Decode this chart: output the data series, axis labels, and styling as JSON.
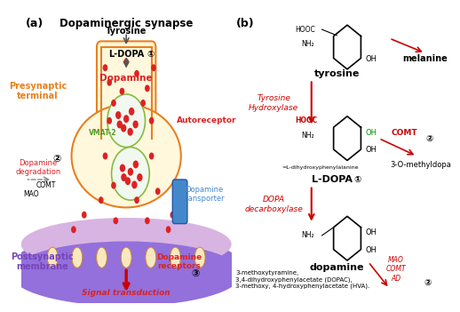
{
  "title_a": "Dopaminergic synapse",
  "title_b_label": "(b)",
  "title_a_label": "(a)",
  "panel_a": {
    "presynaptic_label": "Presynaptic\nterminal",
    "postsynaptic_label": "Postsynaptic\nmembrane",
    "tyrosine_label": "Tyrosine",
    "ldopa_label": "L-DOPA",
    "dopamine_label": "Dopamine",
    "vmat2_label": "VMAT-2",
    "autoreceptor_label": "Autoreceptor",
    "dopamine_transporter_label": "Dopamine\ntransporter",
    "dopamine_degradation_label": "Dopamine\ndegradation",
    "comt_label": "COMT",
    "mao_label": "MAO",
    "signal_transduction_label": "Signal transduction",
    "dopamine_receptors_label": "Dopamine\nreceptors",
    "circle1_label": "①",
    "circle2_label": "②",
    "circle3_label": "③"
  },
  "panel_b": {
    "tyrosine_label": "tyrosine",
    "melanine_label": "melanine",
    "ldopa_label": "L-DOPA",
    "ldopa_sub": "=L-dihydroxyphenylalanine",
    "methyldopa_label": "3-O-methyldopa",
    "dopamine_label": "dopamine",
    "tyrosine_hydroxylase_label": "Tyrosine\nHydroxylase",
    "dopa_decarboxylase_label": "DOPA\ndecarboxylase",
    "comt_label": "COMT",
    "mao_ad_label": "MAO\nCOMT\nAD",
    "metabolites_label": "3-methoxytyramine,\n3,4-dihydroxyphenylacetate (DOPAC),\n3-methoxy, 4-hydroxyphenylacetate (HVA).",
    "circle1_label": "①",
    "circle2a_label": "②",
    "circle2b_label": "②",
    "hooc_color": "#cc0000",
    "oh_color": "#00aa00",
    "arrow_color": "#cc0000",
    "enzyme_color": "#cc0000"
  },
  "colors": {
    "presynaptic_terminal_fill": "#fff8dc",
    "presynaptic_terminal_border": "#e88020",
    "postsynaptic_fill": "#9370db",
    "background": "#ffffff",
    "dopamine_dot": "#cc0000",
    "orange_text": "#e88020",
    "red_text": "#cc0000",
    "green_text": "#009900",
    "black_text": "#000000",
    "blue_text": "#4488cc",
    "arrow_outline": "#888888",
    "vmat2_green": "#88cc44",
    "transporter_blue": "#4488cc"
  }
}
